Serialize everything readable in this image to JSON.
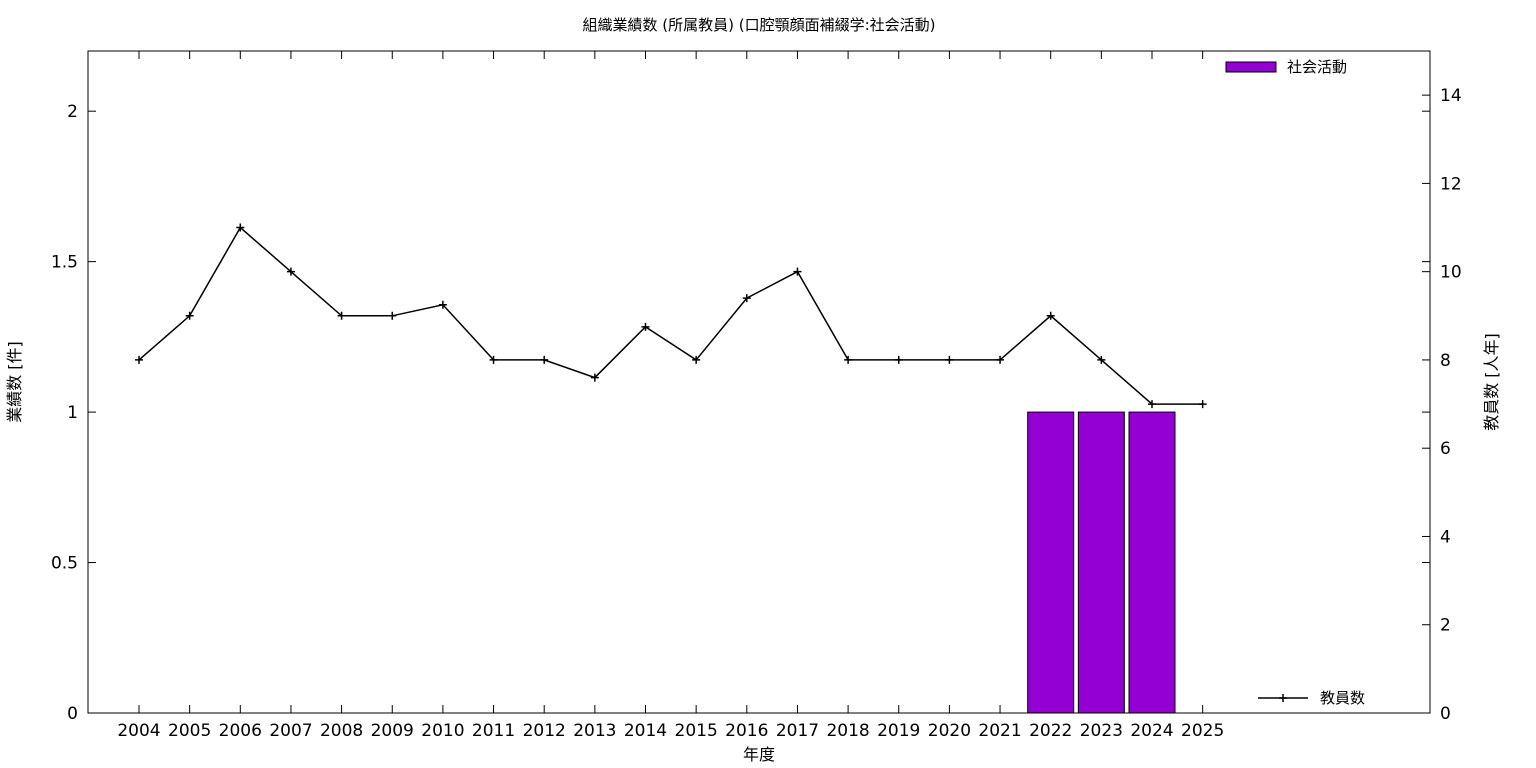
{
  "chart_data": {
    "type": "bar",
    "title": "組織業績数 (所属教員) (口腔顎顔面補綴学:社会活動)",
    "xlabel": "年度",
    "ylabel_left": "業績数 [件]",
    "ylabel_right": "教員数 [人年]",
    "categories": [
      "2004",
      "2005",
      "2006",
      "2007",
      "2008",
      "2009",
      "2010",
      "2011",
      "2012",
      "2013",
      "2014",
      "2015",
      "2016",
      "2017",
      "2018",
      "2019",
      "2020",
      "2021",
      "2022",
      "2023",
      "2024",
      "2025"
    ],
    "ylim_left": [
      0,
      2.2
    ],
    "yticks_left": [
      "0",
      "0.5",
      "1",
      "1.5",
      "2"
    ],
    "ytick_values_left": [
      0,
      0.5,
      1,
      1.5,
      2
    ],
    "ylim_right": [
      0,
      15
    ],
    "yticks_right": [
      "0",
      "2",
      "4",
      "6",
      "8",
      "10",
      "12",
      "14"
    ],
    "ytick_values_right": [
      0,
      2,
      4,
      6,
      8,
      10,
      12,
      14
    ],
    "grid": false,
    "series": [
      {
        "name": "社会活動",
        "type": "bar",
        "axis": "left",
        "color": "#9400d3",
        "values": [
          0,
          0,
          0,
          0,
          0,
          0,
          0,
          0,
          0,
          0,
          0,
          0,
          0,
          0,
          0,
          0,
          0,
          0,
          1,
          1,
          1,
          0
        ]
      },
      {
        "name": "教員数",
        "type": "line",
        "axis": "right",
        "color": "#000000",
        "values": [
          8,
          9,
          11,
          10,
          9,
          9,
          9.25,
          8,
          8,
          7.6,
          8.75,
          8,
          9.4,
          10,
          8,
          8,
          8,
          8,
          9,
          8,
          7,
          7
        ]
      }
    ],
    "legend": {
      "bar_position": "top-right",
      "line_position": "bottom-right"
    }
  }
}
